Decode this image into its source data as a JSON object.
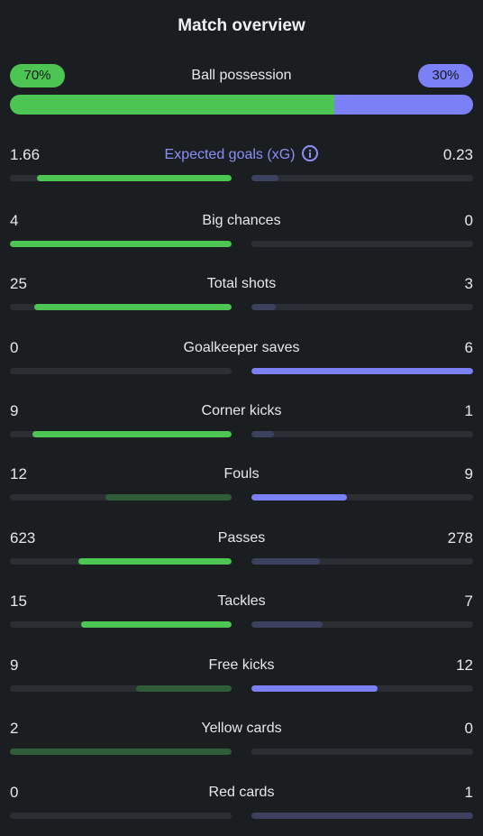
{
  "title": "Match overview",
  "possession": {
    "label": "Ball possession",
    "home_label": "70%",
    "away_label": "30%",
    "home_pct": 70
  },
  "colors": {
    "home": "#4cc552",
    "home_dim": "#2f5d3a",
    "away": "#7b80f7",
    "away_dim": "#3d4160",
    "track": "#2b2f33"
  },
  "stats": [
    {
      "label": "Expected goals (xG)",
      "home": "1.66",
      "away": "0.23",
      "home_frac": 0.88,
      "away_frac": 0.12,
      "winner": "home",
      "accent": true,
      "icon": "info-icon"
    },
    {
      "label": "Big chances",
      "home": "4",
      "away": "0",
      "home_frac": 1.0,
      "away_frac": 0.0,
      "winner": "home"
    },
    {
      "label": "Total shots",
      "home": "25",
      "away": "3",
      "home_frac": 0.89,
      "away_frac": 0.11,
      "winner": "home"
    },
    {
      "label": "Goalkeeper saves",
      "home": "0",
      "away": "6",
      "home_frac": 0.0,
      "away_frac": 1.0,
      "winner": "away"
    },
    {
      "label": "Corner kicks",
      "home": "9",
      "away": "1",
      "home_frac": 0.9,
      "away_frac": 0.1,
      "winner": "home"
    },
    {
      "label": "Fouls",
      "home": "12",
      "away": "9",
      "home_frac": 0.57,
      "away_frac": 0.43,
      "winner": "away"
    },
    {
      "label": "Passes",
      "home": "623",
      "away": "278",
      "home_frac": 0.69,
      "away_frac": 0.31,
      "winner": "home"
    },
    {
      "label": "Tackles",
      "home": "15",
      "away": "7",
      "home_frac": 0.68,
      "away_frac": 0.32,
      "winner": "home"
    },
    {
      "label": "Free kicks",
      "home": "9",
      "away": "12",
      "home_frac": 0.43,
      "away_frac": 0.57,
      "winner": "away"
    },
    {
      "label": "Yellow cards",
      "home": "2",
      "away": "0",
      "home_frac": 1.0,
      "away_frac": 0.0,
      "winner": "away"
    },
    {
      "label": "Red cards",
      "home": "0",
      "away": "1",
      "home_frac": 0.0,
      "away_frac": 1.0,
      "winner": "home"
    }
  ]
}
